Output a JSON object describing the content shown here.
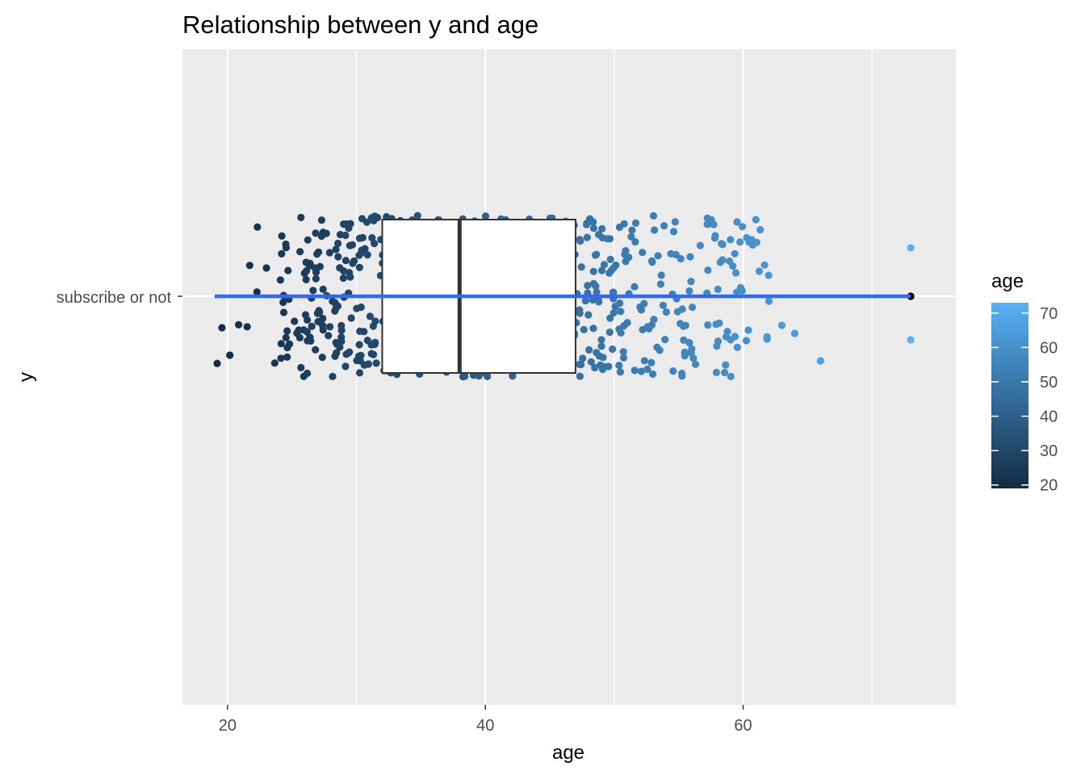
{
  "chart_data": {
    "type": "scatter",
    "title": "Relationship between y and age",
    "xlabel": "age",
    "ylabel": "y",
    "xlim": [
      16.5,
      76.5
    ],
    "x_ticks": [
      20,
      40,
      60
    ],
    "y_categories": [
      "subscribe or not"
    ],
    "grid": true,
    "colors": {
      "panel": "#ebebeb",
      "grid": "#ffffff",
      "low": "#132b43",
      "high": "#56b1f7",
      "line": "#3366ff",
      "box_fill": "#ffffff",
      "box_stroke": "#333333"
    },
    "boxplot": {
      "q1": 32,
      "median": 38,
      "q3": 47,
      "whisker_low": 19,
      "whisker_high": 70,
      "outliers": [
        73
      ]
    },
    "regression_line": {
      "x_start": 19,
      "x_end": 73
    },
    "jitter": {
      "count": 720,
      "x_range": [
        19,
        62
      ],
      "outlier_points": [
        {
          "x": 73,
          "dy": 0.3
        },
        {
          "x": 73,
          "dy": -0.27
        },
        {
          "x": 66,
          "dy": -0.4
        },
        {
          "x": 62,
          "dy": -0.03
        },
        {
          "x": 63,
          "dy": -0.18
        },
        {
          "x": 64,
          "dy": -0.23
        }
      ]
    },
    "legend": {
      "title": "age",
      "position": "right",
      "ticks": [
        20,
        30,
        40,
        50,
        60,
        70
      ],
      "range": [
        19,
        73
      ]
    }
  }
}
